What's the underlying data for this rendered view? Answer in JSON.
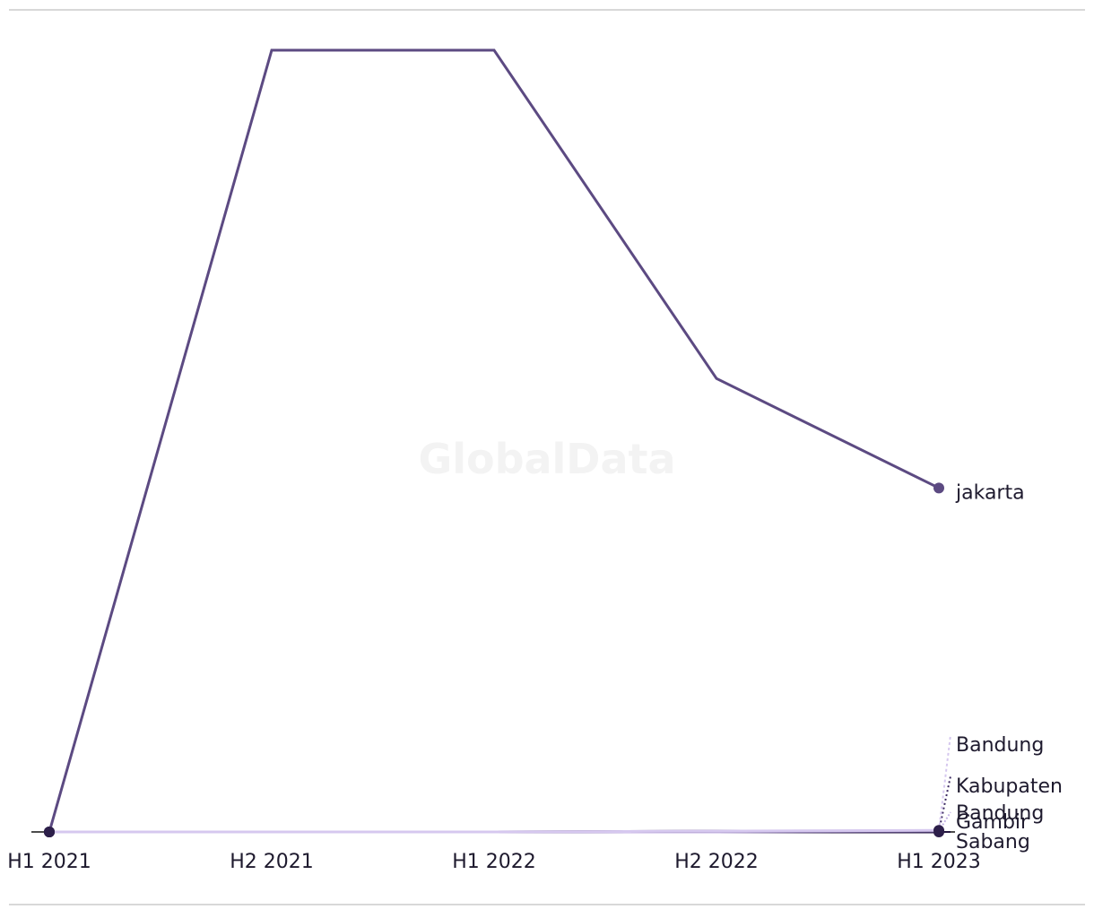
{
  "chart_data": {
    "type": "line",
    "watermark": "GlobalData",
    "categories": [
      "H1 2021",
      "H2 2021",
      "H1 2022",
      "H2 2022",
      "H1 2023"
    ],
    "ylim": [
      0,
      100
    ],
    "series": [
      {
        "name": "jakarta",
        "color": "#5c4a82",
        "values": [
          0,
          100,
          100,
          58,
          44
        ]
      },
      {
        "name": "Bandung",
        "color": "#d6c8ef",
        "values": [
          0,
          0,
          0,
          0.1,
          0.2
        ]
      },
      {
        "name": "Kabupaten Bandung",
        "color": "#3b2862",
        "values": [
          0,
          0,
          0,
          0.1,
          0.1
        ]
      },
      {
        "name": "Gambir",
        "color": "#c4b2e4",
        "values": [
          0,
          0,
          0,
          0,
          0.1
        ]
      },
      {
        "name": "Sabang",
        "color": "#24163f",
        "values": [
          0,
          0,
          0,
          0,
          0
        ]
      }
    ]
  }
}
